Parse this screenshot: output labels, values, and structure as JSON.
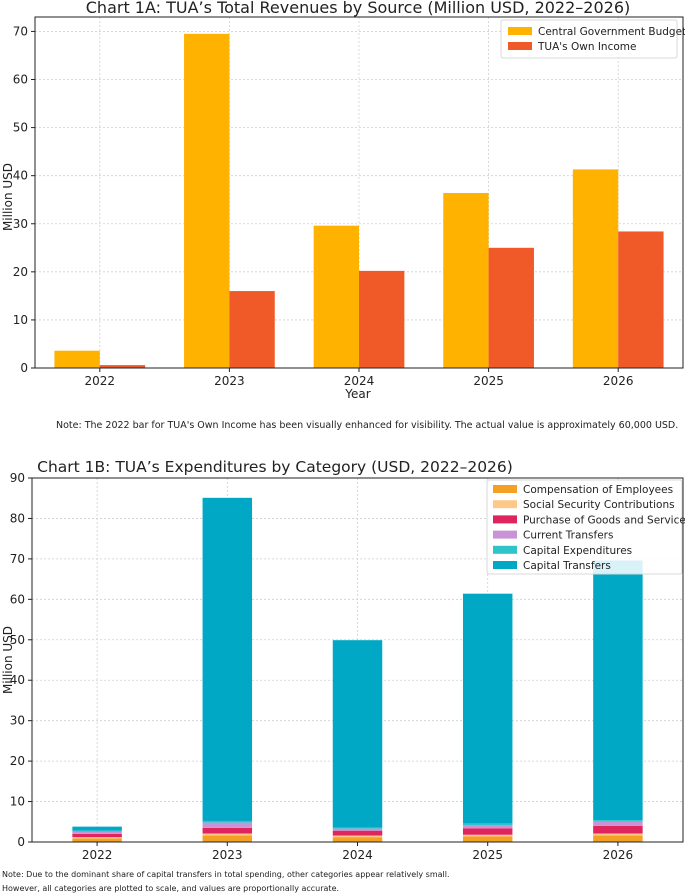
{
  "chart_data": [
    {
      "type": "bar",
      "title": "Chart 1A: TUA’s Total Revenues by Source (Million USD, 2022–2026)",
      "xlabel": "Year",
      "ylabel": "Million USD",
      "categories": [
        "2022",
        "2023",
        "2024",
        "2025",
        "2026"
      ],
      "ylim": [
        0,
        73
      ],
      "yticks": [
        0,
        10,
        20,
        30,
        40,
        50,
        60,
        70
      ],
      "grid": true,
      "legend_position": "top-right",
      "series": [
        {
          "name": "Central Government Budget",
          "color": "#FFB300",
          "values": [
            3.6,
            69.5,
            29.6,
            36.4,
            41.3
          ]
        },
        {
          "name": "TUA's Own Income",
          "color": "#F05A28",
          "values": [
            0.6,
            16.0,
            20.2,
            25.0,
            28.4
          ]
        }
      ],
      "note": "Note: The 2022 bar for TUA's Own Income has been visually enhanced for visibility. The actual value is approximately 60,000 USD."
    },
    {
      "type": "bar",
      "stacked": true,
      "title": "Chart 1B: TUA’s Expenditures by Category (USD, 2022–2026)",
      "xlabel": "",
      "ylabel": "Million USD",
      "categories": [
        "2022",
        "2023",
        "2024",
        "2025",
        "2026"
      ],
      "ylim": [
        0,
        90
      ],
      "yticks": [
        0,
        10,
        20,
        30,
        40,
        50,
        60,
        70,
        80,
        90
      ],
      "grid": true,
      "legend_position": "top-right",
      "series": [
        {
          "name": "Compensation of Employees",
          "color": "#F4A024",
          "values": [
            0.9,
            1.6,
            1.2,
            1.4,
            1.6
          ]
        },
        {
          "name": "Social Security Contributions",
          "color": "#FDC98A",
          "values": [
            0.3,
            0.5,
            0.4,
            0.4,
            0.5
          ]
        },
        {
          "name": "Purchase of Goods and Services",
          "color": "#E0245E",
          "values": [
            0.8,
            1.4,
            1.2,
            1.6,
            1.9
          ]
        },
        {
          "name": "Current Transfers",
          "color": "#C994D6",
          "values": [
            0.5,
            1.3,
            0.5,
            0.8,
            1.0
          ]
        },
        {
          "name": "Capital Expenditures",
          "color": "#2EC4C9",
          "values": [
            0.3,
            0.4,
            0.3,
            0.4,
            0.4
          ]
        },
        {
          "name": "Capital Transfers",
          "color": "#00A8C6",
          "values": [
            1.0,
            79.9,
            46.3,
            56.8,
            64.2
          ]
        }
      ],
      "notes": [
        "Note: Due to the dominant share of capital transfers in total spending, other categories appear relatively small.",
        "However, all categories are plotted to scale, and values are proportionally accurate."
      ]
    }
  ]
}
